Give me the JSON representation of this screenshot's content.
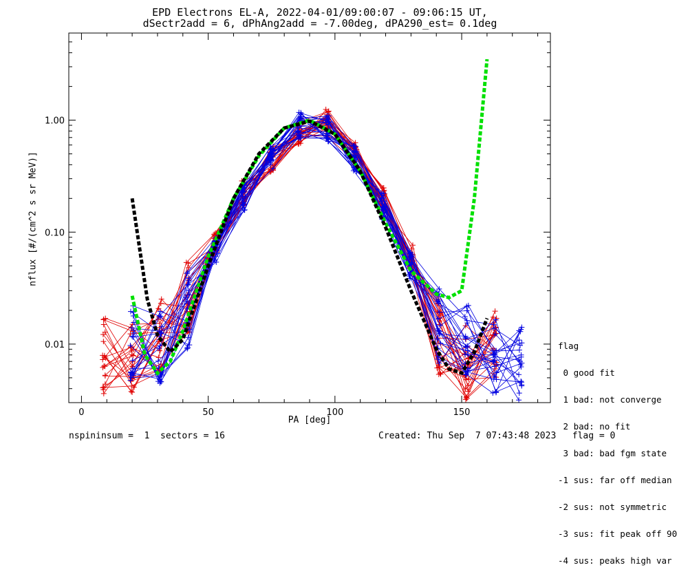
{
  "header": {
    "title_line1": "EPD Electrons EL-A, 2022-04-01/09:00:07 - 09:06:15 UT,",
    "title_line2": "dSectr2add = 6, dPhAng2add = -7.00deg, dPA290_est=   0.1deg"
  },
  "footer": {
    "left": "nspininsum =  1  sectors = 16",
    "right": "Created: Thu Sep  7 07:43:48 2023   flag = 0"
  },
  "legend": {
    "title": "flag",
    "items": [
      " 0 good fit",
      " 1 bad: not converge",
      " 2 bad: no fit",
      " 3 bad: bad fgm state",
      "-1 sus: far off median",
      "-2 sus: not symmetric",
      "-3 sus: fit peak off 90",
      "-4 sus: peaks high var"
    ]
  },
  "colors": {
    "red_series": "#e00000",
    "blue_series": "#0000e0",
    "green_fit": "#00e000",
    "black_fit": "#000000"
  },
  "chart_data": {
    "type": "line",
    "xlabel": "PA [deg]",
    "ylabel": "nflux [#/(cm^2 s sr MeV)]",
    "x_scale": "linear",
    "y_scale": "log",
    "xlim": [
      -5,
      185
    ],
    "ylim": [
      0.003,
      6.0
    ],
    "x_ticks": [
      0,
      50,
      100,
      150
    ],
    "x_tick_labels": [
      "0",
      "50",
      "100",
      "150"
    ],
    "y_ticks": [
      0.01,
      0.1,
      1.0
    ],
    "y_tick_labels": [
      "0.01",
      "0.10",
      "1.00"
    ],
    "grid": false,
    "legend_position": "right, outside plot",
    "series": [
      {
        "color": "red",
        "kind": "median profile (many overlaid spin curves with + markers)",
        "x": [
          9,
          20,
          31,
          42,
          53,
          64,
          75,
          86,
          97,
          108,
          119,
          130,
          141,
          152,
          163
        ],
        "y": [
          0.008,
          0.007,
          0.012,
          0.025,
          0.08,
          0.22,
          0.45,
          0.8,
          0.95,
          0.5,
          0.2,
          0.06,
          0.012,
          0.007,
          0.01
        ]
      },
      {
        "color": "blue",
        "kind": "median profile (many overlaid spin curves with + markers)",
        "x": [
          20,
          31,
          42,
          53,
          64,
          75,
          86,
          97,
          108,
          119,
          130,
          141,
          152,
          163,
          173
        ],
        "y": [
          0.01,
          0.009,
          0.02,
          0.07,
          0.2,
          0.45,
          0.9,
          0.85,
          0.45,
          0.17,
          0.05,
          0.015,
          0.01,
          0.008,
          0.007
        ]
      },
      {
        "color": "green",
        "kind": "dashed fit",
        "x": [
          20,
          25,
          30,
          35,
          40,
          50,
          60,
          70,
          80,
          90,
          100,
          110,
          120,
          130,
          140,
          145,
          150,
          155,
          160
        ],
        "y": [
          0.027,
          0.008,
          0.0055,
          0.007,
          0.013,
          0.06,
          0.2,
          0.48,
          0.85,
          1.0,
          0.75,
          0.35,
          0.12,
          0.045,
          0.028,
          0.026,
          0.03,
          0.2,
          3.5
        ]
      },
      {
        "color": "black",
        "kind": "dashed fit",
        "x": [
          20,
          23,
          26,
          30,
          35,
          40,
          50,
          60,
          70,
          80,
          90,
          100,
          110,
          120,
          130,
          140,
          145,
          150,
          155,
          160
        ],
        "y": [
          0.2,
          0.07,
          0.025,
          0.012,
          0.0085,
          0.011,
          0.05,
          0.2,
          0.5,
          0.85,
          0.98,
          0.75,
          0.35,
          0.11,
          0.03,
          0.009,
          0.006,
          0.0055,
          0.0085,
          0.017
        ]
      }
    ]
  }
}
